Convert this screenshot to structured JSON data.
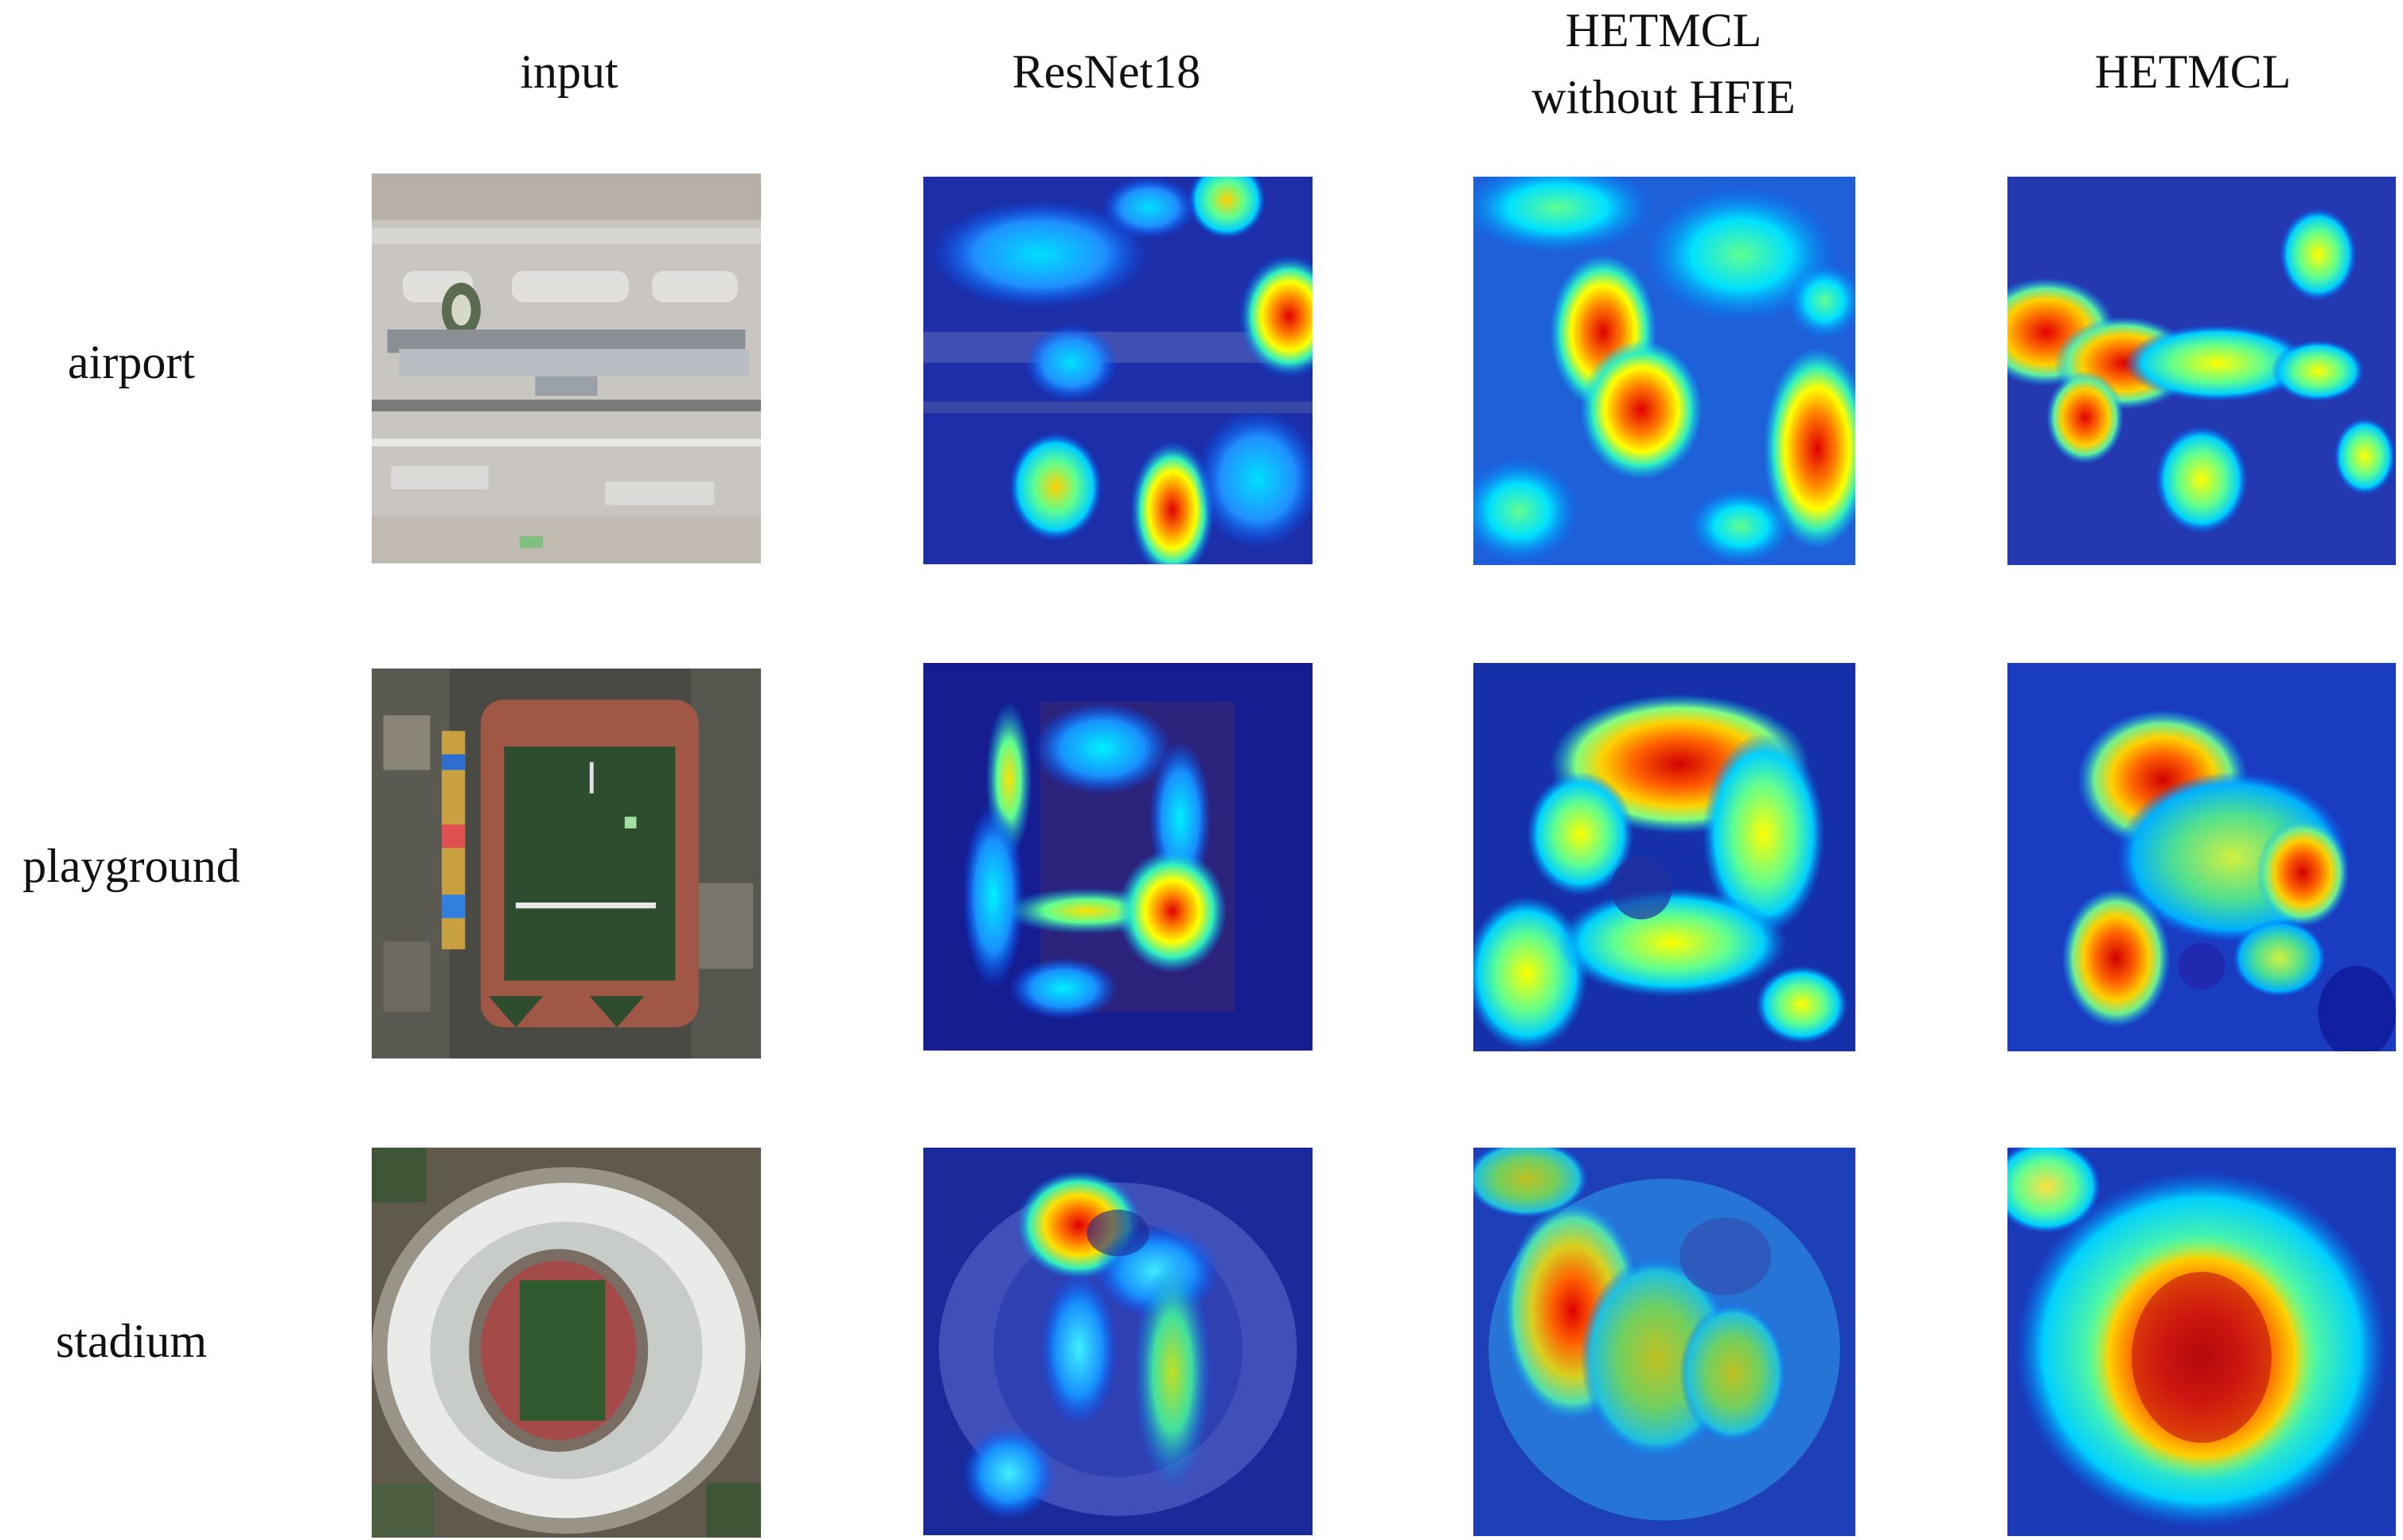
{
  "figure": {
    "columns": [
      {
        "id": "input",
        "label": "input"
      },
      {
        "id": "resnet18",
        "label": "ResNet18"
      },
      {
        "id": "hetmcl-no-hfie",
        "label_line1": "HETMCL",
        "label_line2": "without HFIE"
      },
      {
        "id": "hetmcl",
        "label": "HETMCL"
      }
    ],
    "rows": [
      {
        "id": "airport",
        "label": "airport"
      },
      {
        "id": "playground",
        "label": "playground"
      },
      {
        "id": "stadium",
        "label": "stadium"
      }
    ],
    "heatmap_colormap": [
      "#00008c",
      "#0050ff",
      "#00e0ff",
      "#60ff90",
      "#ffff00",
      "#ff8000",
      "#e00000"
    ]
  }
}
